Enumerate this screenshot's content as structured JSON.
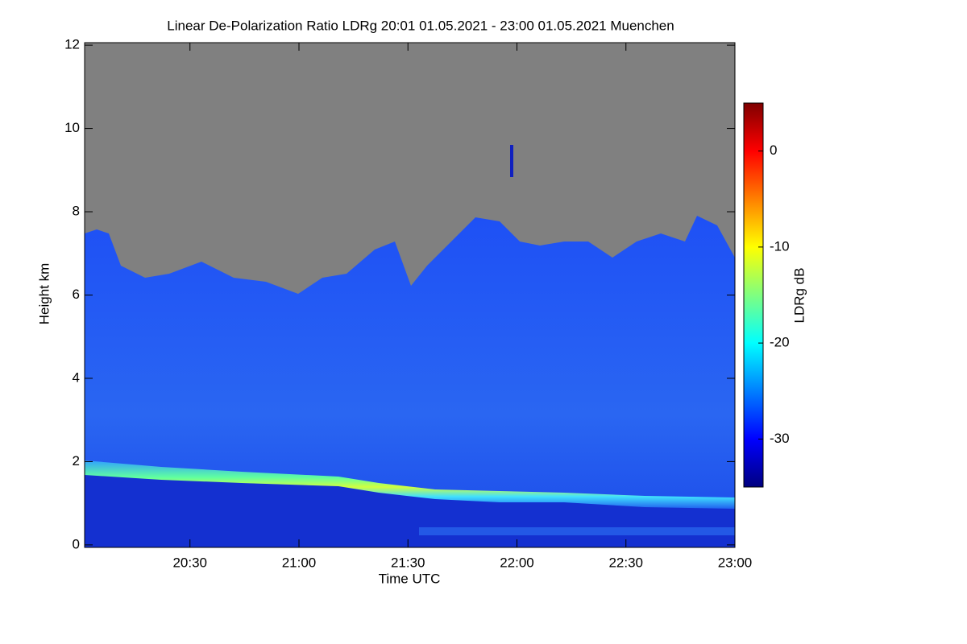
{
  "chart_data": {
    "type": "heatmap",
    "title": "Linear De-Polarization Ratio LDRg   20:01 01.05.2021 - 23:00 01.05.2021 Muenchen",
    "x_label": "Time UTC",
    "y_label": "Height km",
    "colorbar_label": "LDRg dB",
    "xlim": [
      20.0167,
      23.0
    ],
    "xticks": [
      {
        "value": 20.5,
        "label": "20:30"
      },
      {
        "value": 21.0,
        "label": "21:00"
      },
      {
        "value": 21.5,
        "label": "21:30"
      },
      {
        "value": 22.0,
        "label": "22:00"
      },
      {
        "value": 22.5,
        "label": "22:30"
      },
      {
        "value": 23.0,
        "label": "23:00"
      }
    ],
    "ylim": [
      -0.06,
      12.06
    ],
    "yticks": [
      0,
      2,
      4,
      6,
      8,
      10,
      12
    ],
    "zlim": [
      -35,
      5
    ],
    "zticks": [
      0,
      -10,
      -20,
      -30
    ],
    "colormap": "jet"
  }
}
